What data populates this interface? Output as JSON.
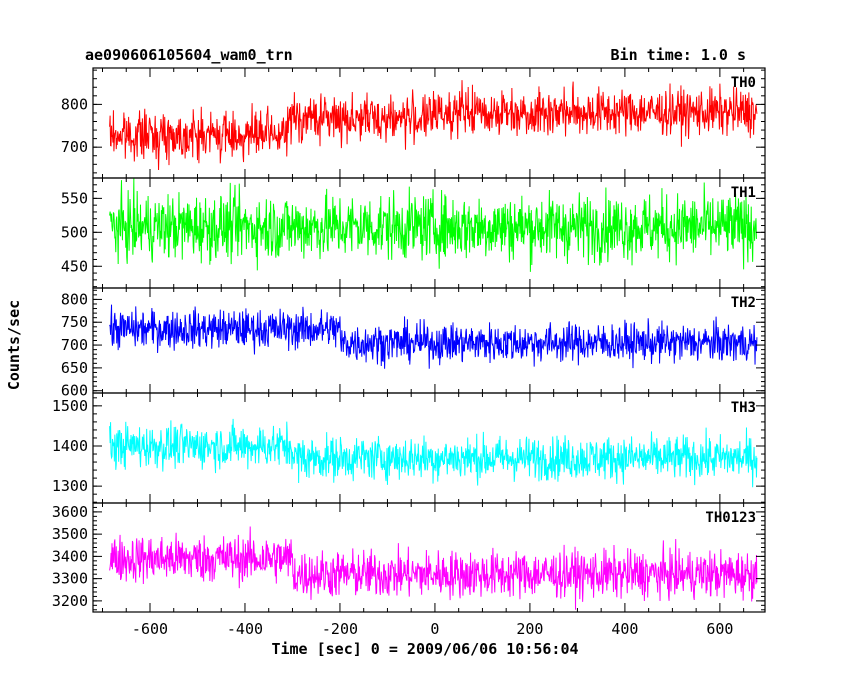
{
  "header": {
    "left_title": "ae090606105604_wam0_trn",
    "right_title": "Bin time: 1.0 s"
  },
  "axes": {
    "ylabel": "Counts/sec",
    "xlabel": "Time [sec] 0 = 2009/06/06 10:56:04"
  },
  "chart_data": {
    "type": "line",
    "title": "ae090606105604_wam0_trn",
    "subtitle": "Bin time: 1.0 s",
    "xlabel": "Time [sec] 0 = 2009/06/06 10:56:04",
    "ylabel": "Counts/sec",
    "xlim": [
      -720,
      695
    ],
    "x_ticks": [
      -600,
      -400,
      -200,
      0,
      200,
      400,
      600
    ],
    "x_data_range": [
      -685,
      678
    ],
    "panels": [
      {
        "name": "TH0",
        "color": "#ff0000",
        "ylim": [
          628,
          885
        ],
        "y_ticks": [
          700,
          800
        ],
        "segments": [
          {
            "x_start": -685,
            "x_end": -310,
            "mean": 728,
            "spread": 38
          },
          {
            "x_start": -310,
            "x_end": 0,
            "mean": 768,
            "spread": 38
          },
          {
            "x_start": 0,
            "x_end": 678,
            "mean": 782,
            "spread": 38
          }
        ]
      },
      {
        "name": "TH1",
        "color": "#00ff00",
        "ylim": [
          418,
          580
        ],
        "y_ticks": [
          450,
          500,
          550
        ],
        "segments": [
          {
            "x_start": -685,
            "x_end": 678,
            "mean": 508,
            "spread": 34
          }
        ]
      },
      {
        "name": "TH2",
        "color": "#0000ff",
        "ylim": [
          595,
          825
        ],
        "y_ticks": [
          600,
          650,
          700,
          750,
          800
        ],
        "segments": [
          {
            "x_start": -685,
            "x_end": -200,
            "mean": 735,
            "spread": 30
          },
          {
            "x_start": -200,
            "x_end": 678,
            "mean": 705,
            "spread": 30
          }
        ]
      },
      {
        "name": "TH3",
        "color": "#00ffff",
        "ylim": [
          1258,
          1532
        ],
        "y_ticks": [
          1300,
          1400,
          1500
        ],
        "segments": [
          {
            "x_start": -685,
            "x_end": -300,
            "mean": 1400,
            "spread": 38
          },
          {
            "x_start": -300,
            "x_end": 678,
            "mean": 1370,
            "spread": 38
          }
        ]
      },
      {
        "name": "TH0123",
        "color": "#ff00ff",
        "ylim": [
          3150,
          3640
        ],
        "y_ticks": [
          3200,
          3300,
          3400,
          3500,
          3600
        ],
        "segments": [
          {
            "x_start": -685,
            "x_end": -300,
            "mean": 3390,
            "spread": 75
          },
          {
            "x_start": -300,
            "x_end": 678,
            "mean": 3320,
            "spread": 75
          }
        ]
      }
    ]
  }
}
